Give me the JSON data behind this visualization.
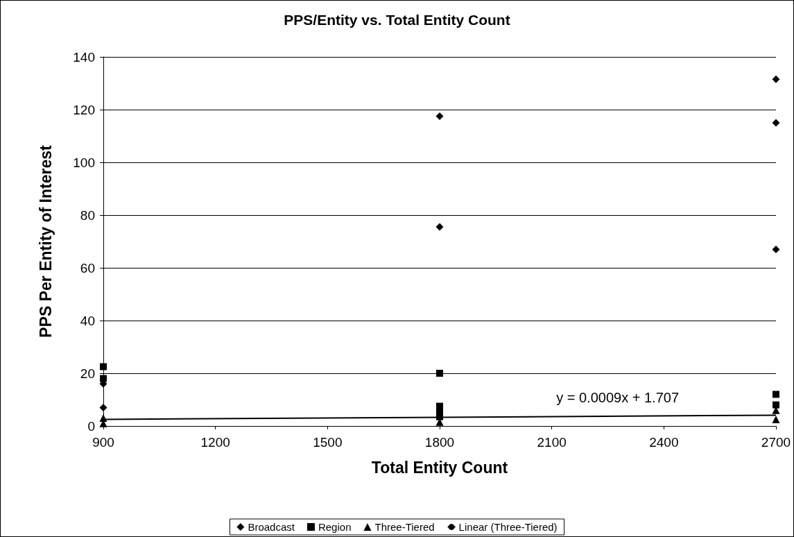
{
  "chart_data": {
    "type": "scatter",
    "title": "PPS/Entity vs. Total Entity Count",
    "xlabel": "Total Entity Count",
    "ylabel": "PPS Per Entity of Interest",
    "xlim": [
      900,
      2700
    ],
    "xticks": [
      900,
      1200,
      1500,
      1800,
      2100,
      2400,
      2700
    ],
    "ylim": [
      0,
      140
    ],
    "yticks": [
      0,
      20,
      40,
      60,
      80,
      100,
      120,
      140
    ],
    "grid": "y",
    "legend": "bottom",
    "annotations": [
      "y = 0.0009x + 1.707"
    ],
    "series": [
      {
        "name": "Broadcast",
        "color": "#000000",
        "marker": "diamond",
        "x": [
          900,
          900,
          1800,
          1800,
          2700,
          2700,
          2700
        ],
        "values": [
          7,
          16,
          117.5,
          75.5,
          131.5,
          115,
          67
        ]
      },
      {
        "name": "Region",
        "color": "#000000",
        "marker": "square",
        "x": [
          900,
          900,
          1800,
          1800,
          1800,
          1800,
          2700,
          2700
        ],
        "values": [
          22.5,
          18,
          20,
          7.5,
          5,
          3.5,
          12,
          8
        ]
      },
      {
        "name": "Three-Tiered",
        "color": "#000000",
        "marker": "triangle",
        "x": [
          900,
          900,
          1800,
          2700,
          2700
        ],
        "values": [
          3,
          1,
          1.5,
          6,
          2.5
        ]
      },
      {
        "name": "Linear (Three-Tiered)",
        "type": "line",
        "color": "#000000",
        "marker": "none",
        "line_style": "solid",
        "x": [
          900,
          2700
        ],
        "values": [
          2.5,
          4.1
        ]
      }
    ]
  }
}
